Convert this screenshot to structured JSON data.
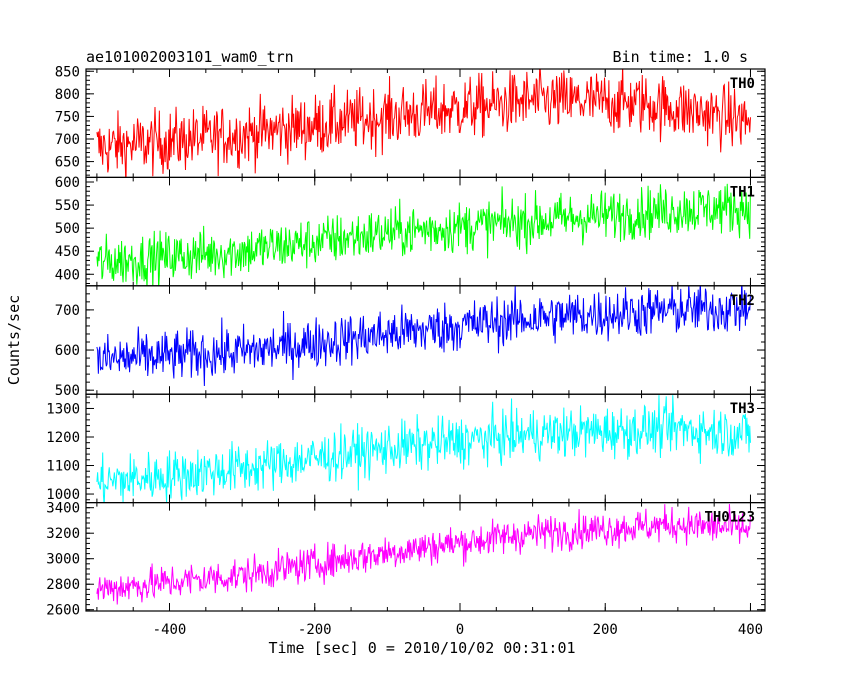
{
  "header": {
    "title": "ae101002003101_wam0_trn",
    "bin_time": "Bin time: 1.0 s"
  },
  "chart_data": {
    "type": "line",
    "title": "ae101002003101_wam0_trn",
    "xlabel": "Time [sec] 0 = 2010/10/02 00:31:01",
    "ylabel": "Counts/sec",
    "xlim": [
      -515,
      420
    ],
    "x_ticks": [
      -400,
      -200,
      0,
      200,
      400
    ],
    "x_start": -500,
    "x_end": 400,
    "x_step": 1,
    "panels": [
      {
        "name": "TH0",
        "color": "#ff0000",
        "ylim": [
          615,
          855
        ],
        "y_ticks": [
          650,
          700,
          750,
          800,
          850
        ],
        "trend": [
          [
            -500,
            680
          ],
          [
            -300,
            710
          ],
          [
            -100,
            750
          ],
          [
            100,
            785
          ],
          [
            250,
            780
          ],
          [
            400,
            740
          ]
        ],
        "noise": 35
      },
      {
        "name": "TH1",
        "color": "#00ff00",
        "ylim": [
          375,
          610
        ],
        "y_ticks": [
          400,
          450,
          500,
          550,
          600
        ],
        "trend": [
          [
            -500,
            425
          ],
          [
            -300,
            450
          ],
          [
            -100,
            490
          ],
          [
            100,
            515
          ],
          [
            300,
            540
          ],
          [
            400,
            545
          ]
        ],
        "noise": 28
      },
      {
        "name": "TH2",
        "color": "#0000ff",
        "ylim": [
          490,
          760
        ],
        "y_ticks": [
          500,
          600,
          700
        ],
        "trend": [
          [
            -500,
            575
          ],
          [
            -300,
            595
          ],
          [
            -100,
            640
          ],
          [
            100,
            680
          ],
          [
            300,
            700
          ],
          [
            400,
            705
          ]
        ],
        "noise": 32
      },
      {
        "name": "TH3",
        "color": "#00ffff",
        "ylim": [
          970,
          1350
        ],
        "y_ticks": [
          1000,
          1100,
          1200,
          1300
        ],
        "trend": [
          [
            -500,
            1040
          ],
          [
            -300,
            1090
          ],
          [
            -100,
            1160
          ],
          [
            100,
            1210
          ],
          [
            300,
            1230
          ],
          [
            400,
            1210
          ]
        ],
        "noise": 45
      },
      {
        "name": "TH0123",
        "color": "#ff00ff",
        "ylim": [
          2590,
          3440
        ],
        "y_ticks": [
          2600,
          2800,
          3000,
          3200,
          3400
        ],
        "trend": [
          [
            -500,
            2760
          ],
          [
            -300,
            2870
          ],
          [
            -100,
            3050
          ],
          [
            100,
            3200
          ],
          [
            300,
            3270
          ],
          [
            400,
            3230
          ]
        ],
        "noise": 70
      }
    ]
  }
}
